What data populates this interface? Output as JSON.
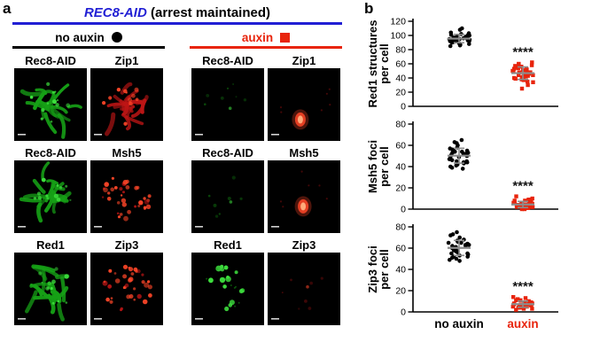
{
  "colors": {
    "accent_blue": "#211fd4",
    "accent_red": "#e8240c",
    "mean_bar_gray": "#8c8c8c"
  },
  "panel_a": {
    "label": "a",
    "title_gene": "REC8-AID",
    "title_rest": " (arrest maintained)",
    "conditions": [
      {
        "label": "no auxin",
        "marker": "circle",
        "color": "#000000"
      },
      {
        "label": "auxin",
        "marker": "square",
        "color": "#e8240c"
      }
    ],
    "rows": [
      {
        "cells": [
          {
            "label": "Rec8-AID",
            "channel": "green",
            "pattern": "spread"
          },
          {
            "label": "Zip1",
            "channel": "red",
            "pattern": "spread"
          },
          {
            "label": "Rec8-AID",
            "channel": "green",
            "pattern": "dim"
          },
          {
            "label": "Zip1",
            "channel": "red",
            "pattern": "blob"
          }
        ]
      },
      {
        "cells": [
          {
            "label": "Rec8-AID",
            "channel": "green",
            "pattern": "spread"
          },
          {
            "label": "Msh5",
            "channel": "red",
            "pattern": "foci"
          },
          {
            "label": "Rec8-AID",
            "channel": "green",
            "pattern": "dim"
          },
          {
            "label": "Msh5",
            "channel": "red",
            "pattern": "blob"
          }
        ]
      },
      {
        "cells": [
          {
            "label": "Red1",
            "channel": "green",
            "pattern": "spread"
          },
          {
            "label": "Zip3",
            "channel": "red",
            "pattern": "foci"
          },
          {
            "label": "Red1",
            "channel": "green",
            "pattern": "puncta"
          },
          {
            "label": "Zip3",
            "channel": "red",
            "pattern": "dim"
          }
        ]
      }
    ]
  },
  "panel_b": {
    "label": "b",
    "x_labels": [
      {
        "text": "no auxin",
        "color": "#000000"
      },
      {
        "text": "auxin",
        "color": "#e8240c"
      }
    ]
  },
  "chart_data": [
    {
      "type": "scatter",
      "ylabel_lines": [
        "Red1 structures",
        "per cell"
      ],
      "ylim": [
        0,
        120
      ],
      "yticks": [
        0,
        20,
        40,
        60,
        80,
        100,
        120
      ],
      "categories": [
        "no auxin",
        "auxin"
      ],
      "significance": "****",
      "series": [
        {
          "name": "no auxin",
          "color": "#000000",
          "marker": "circle",
          "values": [
            92,
            96,
            100,
            88,
            95,
            104,
            90,
            98,
            93,
            101,
            86,
            97,
            94,
            108,
            91,
            99,
            95,
            85,
            103,
            96,
            89,
            100,
            93,
            97,
            110,
            94,
            87,
            102,
            98,
            92,
            96,
            90,
            95
          ]
        },
        {
          "name": "auxin",
          "color": "#e8240c",
          "marker": "square",
          "values": [
            48,
            52,
            44,
            38,
            56,
            50,
            42,
            58,
            34,
            47,
            53,
            40,
            60,
            46,
            49,
            30,
            55,
            45,
            51,
            37,
            54,
            43,
            59,
            41,
            48,
            25,
            57,
            44,
            50,
            39,
            62,
            35,
            52
          ]
        }
      ]
    },
    {
      "type": "scatter",
      "ylabel_lines": [
        "Msh5 foci",
        "per cell"
      ],
      "ylim": [
        0,
        80
      ],
      "yticks": [
        0,
        20,
        40,
        60,
        80
      ],
      "categories": [
        "no auxin",
        "auxin"
      ],
      "significance": "****",
      "series": [
        {
          "name": "no auxin",
          "color": "#000000",
          "marker": "circle",
          "values": [
            50,
            54,
            47,
            42,
            57,
            52,
            45,
            60,
            39,
            51,
            55,
            44,
            62,
            49,
            53,
            41,
            56,
            47,
            54,
            43,
            55,
            46,
            63,
            44,
            50,
            38,
            58,
            48,
            52,
            45,
            65,
            40,
            53
          ]
        },
        {
          "name": "auxin",
          "color": "#e8240c",
          "marker": "square",
          "values": [
            4,
            2,
            6,
            1,
            8,
            3,
            5,
            0,
            7,
            2,
            4,
            9,
            1,
            5,
            3,
            6,
            2,
            10,
            4,
            1,
            7,
            3,
            5,
            2,
            8,
            0,
            6,
            4,
            3,
            12,
            2,
            5
          ]
        }
      ]
    },
    {
      "type": "scatter",
      "ylabel_lines": [
        "Zip3 foci",
        "per cell"
      ],
      "ylim": [
        0,
        80
      ],
      "yticks": [
        0,
        20,
        40,
        60,
        80
      ],
      "categories": [
        "no auxin",
        "auxin"
      ],
      "significance": "****",
      "series": [
        {
          "name": "no auxin",
          "color": "#000000",
          "marker": "circle",
          "values": [
            60,
            64,
            57,
            52,
            67,
            62,
            55,
            70,
            49,
            61,
            65,
            54,
            72,
            59,
            63,
            51,
            66,
            57,
            64,
            52,
            65,
            56,
            73,
            53,
            60,
            48,
            68,
            58,
            62,
            55,
            75,
            50,
            63
          ]
        },
        {
          "name": "auxin",
          "color": "#e8240c",
          "marker": "square",
          "values": [
            7,
            5,
            9,
            3,
            11,
            6,
            8,
            2,
            10,
            5,
            7,
            12,
            4,
            8,
            6,
            9,
            5,
            13,
            7,
            4,
            10,
            6,
            8,
            5,
            11,
            3,
            9,
            7,
            6,
            14,
            5,
            8
          ]
        }
      ]
    }
  ]
}
